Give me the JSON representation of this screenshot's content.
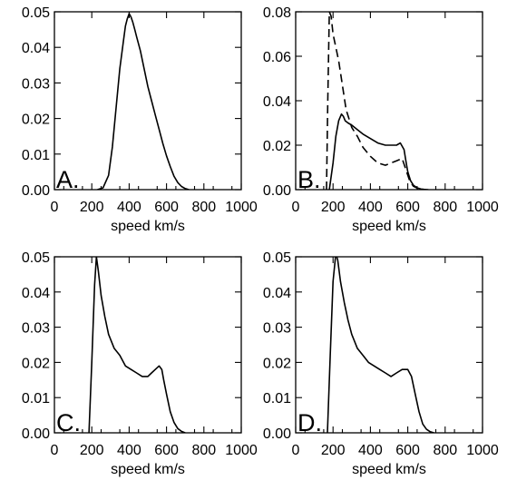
{
  "chart_data": [
    {
      "type": "line",
      "panel_label": "A.",
      "xlabel": "speed km/s",
      "xlim": [
        0,
        1000
      ],
      "ylim": [
        0,
        0.05
      ],
      "x_ticks": [
        "0",
        "200",
        "400",
        "600",
        "800",
        "1000"
      ],
      "y_ticks": [
        "0.00",
        "0.01",
        "0.02",
        "0.03",
        "0.04",
        "0.05"
      ],
      "series": [
        {
          "style": "solid",
          "x": [
            230,
            260,
            290,
            310,
            330,
            350,
            370,
            380,
            390,
            400,
            410,
            420,
            430,
            440,
            460,
            480,
            500,
            520,
            540,
            560,
            580,
            600,
            620,
            640,
            660,
            680,
            700,
            720
          ],
          "y": [
            0.0,
            0.0005,
            0.004,
            0.012,
            0.023,
            0.034,
            0.042,
            0.046,
            0.048,
            0.0495,
            0.0485,
            0.047,
            0.045,
            0.043,
            0.039,
            0.034,
            0.029,
            0.025,
            0.021,
            0.017,
            0.013,
            0.0095,
            0.0065,
            0.0038,
            0.002,
            0.0009,
            0.0003,
            0.0
          ]
        }
      ]
    },
    {
      "type": "line",
      "panel_label": "B.",
      "xlabel": "speed km/s",
      "xlim": [
        0,
        1000
      ],
      "ylim": [
        0,
        0.08
      ],
      "x_ticks": [
        "0",
        "200",
        "400",
        "600",
        "800",
        "1000"
      ],
      "y_ticks": [
        "0.00",
        "0.02",
        "0.04",
        "0.06",
        "0.08"
      ],
      "series": [
        {
          "style": "solid",
          "x": [
            180,
            200,
            215,
            230,
            245,
            255,
            265,
            280,
            300,
            330,
            360,
            400,
            440,
            480,
            510,
            540,
            560,
            580,
            590,
            600,
            615,
            630,
            650,
            670,
            690,
            710
          ],
          "y": [
            0.0,
            0.012,
            0.024,
            0.031,
            0.034,
            0.033,
            0.031,
            0.03,
            0.029,
            0.027,
            0.025,
            0.023,
            0.021,
            0.02,
            0.02,
            0.02,
            0.021,
            0.018,
            0.013,
            0.008,
            0.004,
            0.002,
            0.0008,
            0.0003,
            0.0001,
            0.0
          ]
        },
        {
          "style": "dashed",
          "x": [
            165,
            172,
            180,
            190,
            200,
            215,
            230,
            250,
            270,
            300,
            330,
            360,
            400,
            440,
            480,
            510,
            540,
            570,
            590,
            610,
            630,
            660,
            700
          ],
          "y": [
            0.0,
            0.04,
            0.08,
            0.078,
            0.07,
            0.064,
            0.058,
            0.047,
            0.036,
            0.028,
            0.024,
            0.019,
            0.015,
            0.012,
            0.011,
            0.012,
            0.013,
            0.014,
            0.009,
            0.004,
            0.0015,
            0.0003,
            0.0
          ]
        }
      ]
    },
    {
      "type": "line",
      "panel_label": "C.",
      "xlabel": "speed km/s",
      "xlim": [
        0,
        1000
      ],
      "ylim": [
        0,
        0.05
      ],
      "x_ticks": [
        "0",
        "200",
        "400",
        "600",
        "800",
        "1000"
      ],
      "y_ticks": [
        "0.00",
        "0.01",
        "0.02",
        "0.03",
        "0.04",
        "0.05"
      ],
      "series": [
        {
          "style": "solid",
          "x": [
            185,
            200,
            215,
            225,
            235,
            250,
            270,
            290,
            320,
            350,
            380,
            410,
            440,
            470,
            500,
            520,
            540,
            560,
            575,
            585,
            600,
            620,
            640,
            660,
            680,
            700
          ],
          "y": [
            0.0,
            0.02,
            0.042,
            0.05,
            0.046,
            0.039,
            0.033,
            0.028,
            0.024,
            0.022,
            0.019,
            0.018,
            0.017,
            0.016,
            0.016,
            0.017,
            0.018,
            0.019,
            0.018,
            0.015,
            0.011,
            0.006,
            0.003,
            0.0012,
            0.0004,
            0.0
          ]
        }
      ]
    },
    {
      "type": "line",
      "panel_label": "D.",
      "xlabel": "speed km/s",
      "xlim": [
        0,
        1000
      ],
      "ylim": [
        0,
        0.05
      ],
      "x_ticks": [
        "0",
        "200",
        "400",
        "600",
        "800",
        "1000"
      ],
      "y_ticks": [
        "0.00",
        "0.01",
        "0.02",
        "0.03",
        "0.04",
        "0.05"
      ],
      "series": [
        {
          "style": "solid",
          "x": [
            170,
            185,
            200,
            215,
            225,
            240,
            260,
            280,
            300,
            330,
            360,
            390,
            420,
            450,
            480,
            510,
            540,
            570,
            600,
            620,
            640,
            660,
            680,
            700,
            720,
            740
          ],
          "y": [
            0.0,
            0.022,
            0.043,
            0.051,
            0.049,
            0.043,
            0.037,
            0.032,
            0.028,
            0.024,
            0.022,
            0.02,
            0.019,
            0.018,
            0.017,
            0.016,
            0.017,
            0.018,
            0.018,
            0.016,
            0.011,
            0.006,
            0.0025,
            0.001,
            0.0003,
            0.0
          ]
        }
      ]
    }
  ]
}
